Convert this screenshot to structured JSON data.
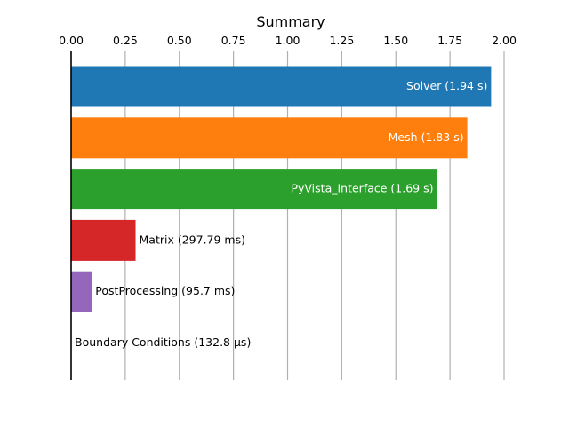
{
  "chart_data": {
    "type": "bar",
    "orientation": "horizontal",
    "title": "Summary",
    "xlabel": "",
    "ylabel": "",
    "xlim": [
      0,
      2.0
    ],
    "x_ticks": [
      "0.00",
      "0.25",
      "0.50",
      "0.75",
      "1.00",
      "1.25",
      "1.50",
      "1.75",
      "2.00"
    ],
    "x_axis_position": "top",
    "grid": "vertical",
    "legend": "none",
    "categories": [
      "Solver",
      "Mesh",
      "PyVista_Interface",
      "Matrix",
      "PostProcessing",
      "Boundary Conditions"
    ],
    "values": [
      1.94,
      1.83,
      1.69,
      0.29779,
      0.0957,
      0.0001328
    ],
    "units": "s",
    "labels": [
      "Solver (1.94 s)",
      "Mesh (1.83 s)",
      "PyVista_Interface (1.69 s)",
      "Matrix (297.79 ms)",
      "PostProcessing (95.7 ms)",
      "Boundary Conditions (132.8 µs)"
    ],
    "label_placement": [
      "inside",
      "inside",
      "inside",
      "outside",
      "outside",
      "outside"
    ],
    "colors": [
      "#1f77b4",
      "#ff7f0e",
      "#2ca02c",
      "#d62728",
      "#9467bd",
      "#8c564b"
    ],
    "label_colors": {
      "inside": "#ffffff",
      "outside": "#000000"
    }
  }
}
